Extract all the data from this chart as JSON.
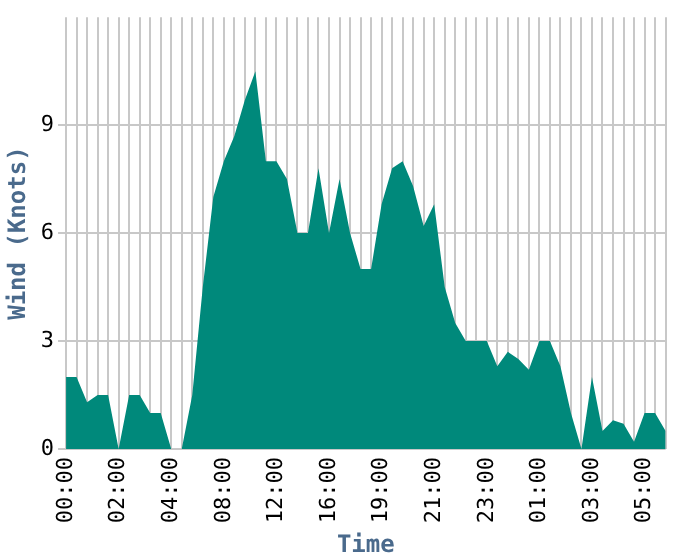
{
  "chart_data": {
    "type": "area",
    "xlabel": "Time",
    "ylabel": "Wind (Knots)",
    "categories": [
      "00:00",
      null,
      null,
      null,
      null,
      "02:00",
      null,
      null,
      null,
      null,
      "04:00",
      null,
      null,
      null,
      null,
      "08:00",
      null,
      null,
      null,
      null,
      "12:00",
      null,
      null,
      null,
      null,
      "16:00",
      null,
      null,
      null,
      null,
      "19:00",
      null,
      null,
      null,
      null,
      "21:00",
      null,
      null,
      null,
      null,
      "23:00",
      null,
      null,
      null,
      null,
      "01:00",
      null,
      null,
      null,
      null,
      "03:00",
      null,
      null,
      null,
      null,
      "05:00",
      null,
      null
    ],
    "series": [
      {
        "color": "#00897b",
        "values": [
          2,
          2,
          1.3,
          1.5,
          1.5,
          0,
          1.5,
          1.5,
          1,
          1,
          0,
          0,
          1.5,
          4.5,
          7,
          8,
          8.7,
          9.7,
          10.5,
          8,
          8,
          7.5,
          6,
          6,
          7.8,
          6,
          7.5,
          6,
          5,
          5,
          6.8,
          7.8,
          8,
          7.3,
          6.2,
          6.8,
          4.5,
          3.5,
          3,
          3,
          3,
          2.3,
          2.7,
          2.5,
          2.2,
          3,
          3,
          2.3,
          1,
          0,
          2,
          0.5,
          0.8,
          0.7,
          0.2,
          1,
          1,
          0.5
        ]
      }
    ],
    "ylim": [
      0,
      12
    ],
    "yticks": [
      0,
      3,
      6,
      9
    ],
    "grid": true,
    "legend": false,
    "marker": "none"
  }
}
